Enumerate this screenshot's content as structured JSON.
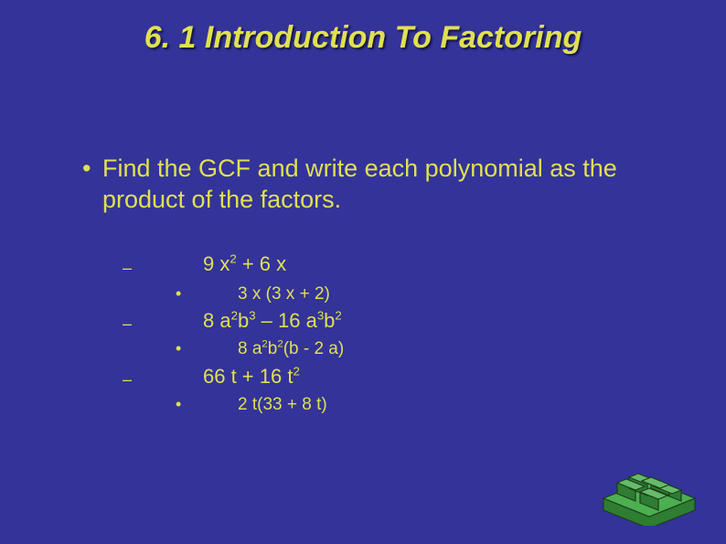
{
  "colors": {
    "background": "#333399",
    "text": "#e0e052",
    "maze_top": "#4caf50",
    "maze_side": "#2e7d32",
    "maze_outline": "#1b3d1b"
  },
  "title": "6. 1 Introduction To Factoring",
  "main_bullet": "Find the GCF and write each polynomial as the product of the factors.",
  "problems": [
    {
      "expr_html": "9 x<sup>2</sup> + 6 x",
      "answer_html": "3 x (3 x + 2)"
    },
    {
      "expr_html": "8 a<sup>2</sup>b<sup>3</sup> – 16 a<sup>3</sup>b<sup>2</sup>",
      "answer_html": "8 a<sup>2</sup>b<sup>2</sup>(b - 2 a)"
    },
    {
      "expr_html": "66 t + 16 t<sup>2</sup>",
      "answer_html": "2 t(33 + 8 t)"
    }
  ],
  "bullet_char": "•",
  "dash_char": "–",
  "fonts": {
    "title_size_pt": 34,
    "body_size_pt": 27,
    "sub_size_pt": 22,
    "subsub_size_pt": 19,
    "family": "Arial",
    "title_italic": true,
    "title_bold": true
  }
}
